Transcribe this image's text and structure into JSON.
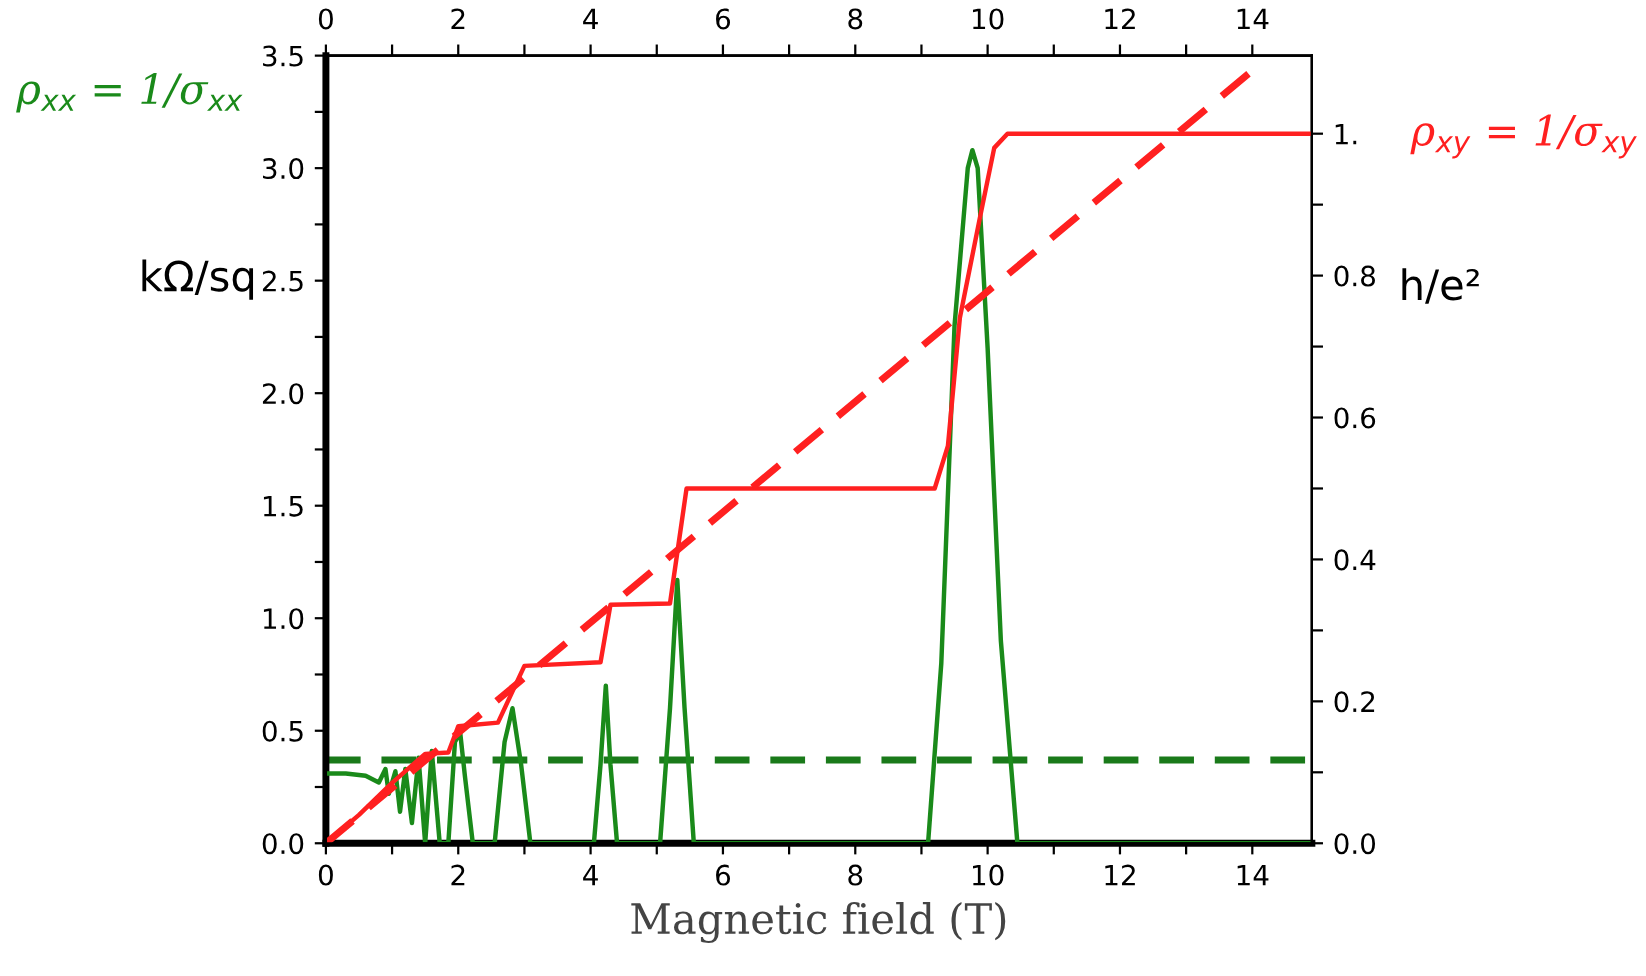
{
  "chart_data": {
    "type": "line",
    "xlabel": "Magnetic field (T)",
    "ylabel": "kΩ/sq",
    "y2label": "h/e²",
    "xlim": [
      0,
      14.9
    ],
    "ylim": [
      0,
      3.5
    ],
    "y2lim": [
      0,
      1.11
    ],
    "x2lim": [
      0,
      14.9
    ],
    "xticks": [
      0,
      {
        "value": 1,
        "label": null
      },
      2,
      {
        "value": 3,
        "label": null
      },
      4,
      {
        "value": 5,
        "label": null
      },
      6,
      {
        "value": 7,
        "label": null
      },
      8,
      {
        "value": 9,
        "label": null
      },
      10,
      {
        "value": 11,
        "label": null
      },
      12,
      {
        "value": 13,
        "label": null
      },
      14
    ],
    "x2ticks": [
      0,
      {
        "value": 1,
        "label": null
      },
      2,
      {
        "value": 3,
        "label": null
      },
      4,
      {
        "value": 5,
        "label": null
      },
      6,
      {
        "value": 7,
        "label": null
      },
      8,
      {
        "value": 9,
        "label": null
      },
      10,
      {
        "value": 11,
        "label": null
      },
      12,
      {
        "value": 13,
        "label": null
      },
      14
    ],
    "yticks": [
      {
        "value": 0,
        "label": "0.0"
      },
      {
        "value": 0.25,
        "label": null
      },
      {
        "value": 0.5,
        "label": "0.5"
      },
      {
        "value": 0.75,
        "label": null
      },
      {
        "value": 1,
        "label": "1.0"
      },
      {
        "value": 1.25,
        "label": null
      },
      {
        "value": 1.5,
        "label": "1.5"
      },
      {
        "value": 1.75,
        "label": null
      },
      {
        "value": 2,
        "label": "2.0"
      },
      {
        "value": 2.25,
        "label": null
      },
      {
        "value": 2.5,
        "label": "2.5"
      },
      {
        "value": 2.75,
        "label": null
      },
      {
        "value": 3,
        "label": "3.0"
      },
      {
        "value": 3.25,
        "label": null
      },
      {
        "value": 3.5,
        "label": "3.5"
      }
    ],
    "y2ticks": [
      {
        "value": 0,
        "label": "0.0"
      },
      {
        "value": 0.1,
        "label": null
      },
      {
        "value": 0.2,
        "label": "0.2"
      },
      {
        "value": 0.3,
        "label": null
      },
      {
        "value": 0.4,
        "label": "0.4"
      },
      {
        "value": 0.5,
        "label": null
      },
      {
        "value": 0.6,
        "label": "0.6"
      },
      {
        "value": 0.7,
        "label": null
      },
      {
        "value": 0.8,
        "label": "0.8"
      },
      {
        "value": 0.9,
        "label": null
      },
      {
        "value": 1,
        "label": "1."
      }
    ],
    "grid": false,
    "legend": false,
    "marker": "none",
    "ref_lines": [
      {
        "axis": "y",
        "value": 0.37,
        "color": "#1a7a1a",
        "line_style": "dashed"
      }
    ],
    "series": [
      {
        "name": "ρ$_{xx}$ = 1/σ$_{xx}$",
        "color": "#1a8a1a",
        "line_style": "solid",
        "x": [
          0,
          0.3,
          0.6,
          0.8,
          0.9,
          0.95,
          1.05,
          1.12,
          1.2,
          1.3,
          1.4,
          1.5,
          1.6,
          1.72,
          1.85,
          1.95,
          2.03,
          2.1,
          2.22,
          2.55,
          2.7,
          2.82,
          2.95,
          3.09,
          4.05,
          4.15,
          4.23,
          4.3,
          4.4,
          5.05,
          5.2,
          5.31,
          5.42,
          5.56,
          9.1,
          9.3,
          9.5,
          9.7,
          9.77,
          9.85,
          10.0,
          10.2,
          10.45,
          14.9
        ],
        "values": [
          0.31,
          0.31,
          0.3,
          0.27,
          0.33,
          0.22,
          0.32,
          0.14,
          0.33,
          0.09,
          0.38,
          0.0,
          0.41,
          0.0,
          0.0,
          0.45,
          0.49,
          0.3,
          0.0,
          0.0,
          0.45,
          0.6,
          0.35,
          0.0,
          0.0,
          0.35,
          0.7,
          0.35,
          0.0,
          0.0,
          0.6,
          1.17,
          0.6,
          0.0,
          0.0,
          0.8,
          2.3,
          3.0,
          3.08,
          3.0,
          2.2,
          0.9,
          0.0,
          0.0
        ]
      },
      {
        "name": "ρ$_{xy}$ = 1/σ$_{xy}$",
        "color": "#ff2020",
        "axis": "y2",
        "line_style": "solid",
        "x": [
          0,
          0.5,
          1.0,
          1.5,
          1.85,
          2.0,
          2.6,
          2.85,
          3.0,
          4.15,
          4.3,
          5.2,
          5.45,
          9.2,
          9.4,
          9.58,
          9.88,
          10.1,
          10.3,
          14.9
        ],
        "values": [
          0,
          0.04,
          0.085,
          0.126,
          0.128,
          0.165,
          0.17,
          0.22,
          0.25,
          0.255,
          0.336,
          0.338,
          0.5,
          0.5,
          0.56,
          0.74,
          0.88,
          0.98,
          1.0,
          1.0
        ]
      },
      {
        "color": "#ff2020",
        "axis": "y2",
        "line_style": "dashed",
        "x": [
          0,
          14.0
        ],
        "values": [
          0,
          1.089
        ]
      }
    ]
  }
}
